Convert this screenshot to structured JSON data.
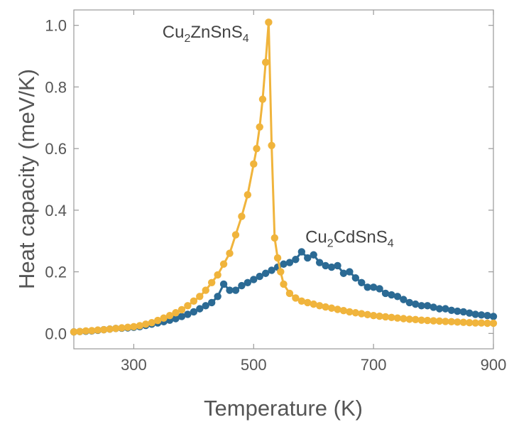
{
  "chart_data": {
    "type": "line",
    "xlabel": "Temperature (K)",
    "ylabel": "Heat capacity (meV/K)",
    "xlim": [
      200,
      900
    ],
    "ylim": [
      -0.05,
      1.05
    ],
    "xticks": [
      300,
      500,
      700,
      900
    ],
    "xtick_labels": [
      "300",
      "500",
      "700",
      "900"
    ],
    "yticks": [
      0.0,
      0.2,
      0.4,
      0.6,
      0.8,
      1.0
    ],
    "ytick_labels": [
      "0.0",
      "0.2",
      "0.4",
      "0.6",
      "0.8",
      "1.0"
    ],
    "grid": false,
    "colors": {
      "Cu2ZnSnS4": "#F0B43C",
      "Cu2CdSnS4": "#2B6A94"
    },
    "annotations": [
      {
        "series": "Cu2ZnSnS4",
        "parts": [
          {
            "t": "Cu",
            "sub": false
          },
          {
            "t": "2",
            "sub": true
          },
          {
            "t": "ZnSnS",
            "sub": false
          },
          {
            "t": "4",
            "sub": true
          }
        ],
        "x": 420,
        "y": 0.96
      },
      {
        "series": "Cu2CdSnS4",
        "parts": [
          {
            "t": "Cu",
            "sub": false
          },
          {
            "t": "2",
            "sub": true
          },
          {
            "t": "CdSnS",
            "sub": false
          },
          {
            "t": "4",
            "sub": true
          }
        ],
        "x": 660,
        "y": 0.295
      }
    ],
    "series": [
      {
        "id": "Cu2CdSnS4",
        "color": "#2B6A94",
        "x": [
          200,
          210,
          220,
          230,
          240,
          250,
          260,
          270,
          280,
          290,
          300,
          310,
          320,
          330,
          340,
          350,
          360,
          370,
          380,
          390,
          400,
          410,
          420,
          430,
          440,
          450,
          460,
          470,
          480,
          490,
          500,
          510,
          520,
          530,
          540,
          550,
          560,
          570,
          580,
          590,
          600,
          610,
          620,
          630,
          640,
          650,
          660,
          670,
          680,
          690,
          700,
          710,
          720,
          730,
          740,
          750,
          760,
          770,
          780,
          790,
          800,
          810,
          820,
          830,
          840,
          850,
          860,
          870,
          880,
          890,
          900
        ],
        "values": [
          0.005,
          0.006,
          0.007,
          0.008,
          0.01,
          0.012,
          0.014,
          0.016,
          0.017,
          0.018,
          0.02,
          0.022,
          0.026,
          0.03,
          0.034,
          0.038,
          0.043,
          0.048,
          0.055,
          0.062,
          0.07,
          0.08,
          0.09,
          0.1,
          0.12,
          0.16,
          0.14,
          0.14,
          0.155,
          0.165,
          0.175,
          0.185,
          0.195,
          0.205,
          0.215,
          0.225,
          0.23,
          0.24,
          0.265,
          0.245,
          0.255,
          0.23,
          0.22,
          0.215,
          0.22,
          0.195,
          0.2,
          0.18,
          0.165,
          0.15,
          0.15,
          0.145,
          0.13,
          0.125,
          0.12,
          0.11,
          0.1,
          0.095,
          0.09,
          0.09,
          0.085,
          0.08,
          0.08,
          0.075,
          0.072,
          0.07,
          0.066,
          0.062,
          0.06,
          0.058,
          0.055
        ]
      },
      {
        "id": "Cu2ZnSnS4",
        "color": "#F0B43C",
        "x": [
          200,
          210,
          220,
          230,
          240,
          250,
          260,
          270,
          280,
          290,
          300,
          310,
          320,
          330,
          340,
          350,
          360,
          370,
          380,
          390,
          400,
          410,
          420,
          430,
          440,
          450,
          460,
          470,
          480,
          490,
          500,
          505,
          510,
          515,
          520,
          525,
          530,
          535,
          540,
          545,
          550,
          560,
          570,
          580,
          590,
          600,
          610,
          620,
          630,
          640,
          650,
          660,
          670,
          680,
          690,
          700,
          710,
          720,
          730,
          740,
          750,
          760,
          770,
          780,
          790,
          800,
          810,
          820,
          830,
          840,
          850,
          860,
          870,
          880,
          890,
          900
        ],
        "values": [
          0.005,
          0.006,
          0.008,
          0.009,
          0.011,
          0.012,
          0.014,
          0.016,
          0.018,
          0.02,
          0.022,
          0.025,
          0.03,
          0.035,
          0.042,
          0.05,
          0.058,
          0.067,
          0.077,
          0.09,
          0.105,
          0.12,
          0.14,
          0.165,
          0.19,
          0.225,
          0.26,
          0.32,
          0.38,
          0.45,
          0.55,
          0.6,
          0.67,
          0.76,
          0.88,
          1.01,
          0.61,
          0.31,
          0.245,
          0.2,
          0.16,
          0.13,
          0.115,
          0.105,
          0.1,
          0.095,
          0.09,
          0.086,
          0.082,
          0.078,
          0.074,
          0.07,
          0.067,
          0.064,
          0.061,
          0.058,
          0.056,
          0.054,
          0.052,
          0.05,
          0.048,
          0.046,
          0.045,
          0.043,
          0.042,
          0.041,
          0.04,
          0.039,
          0.038,
          0.037,
          0.036,
          0.035,
          0.034,
          0.034,
          0.033,
          0.033
        ]
      }
    ]
  }
}
